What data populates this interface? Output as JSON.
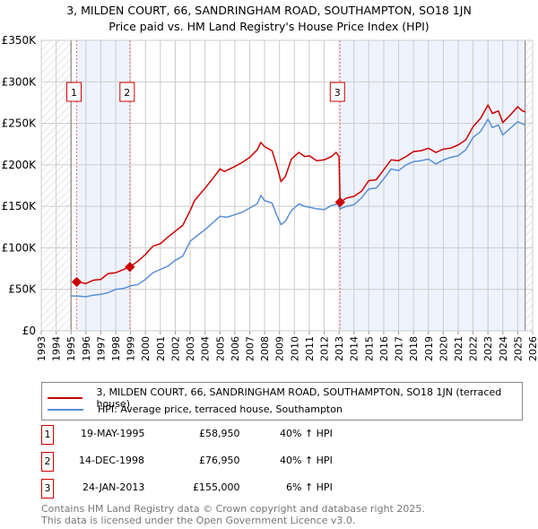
{
  "title": "3, MILDEN COURT, 66, SANDRINGHAM ROAD, SOUTHAMPTON, SO18 1JN",
  "subtitle": "Price paid vs. HM Land Registry's House Price Index (HPI)",
  "chart_data": {
    "type": "line",
    "xlim": [
      1993,
      2026
    ],
    "ylim": [
      0,
      350000
    ],
    "x_ticks": [
      "1993",
      "1994",
      "1995",
      "1996",
      "1997",
      "1998",
      "1999",
      "2000",
      "2001",
      "2002",
      "2003",
      "2004",
      "2005",
      "2006",
      "2007",
      "2008",
      "2009",
      "2010",
      "2011",
      "2012",
      "2013",
      "2014",
      "2015",
      "2016",
      "2017",
      "2018",
      "2019",
      "2020",
      "2021",
      "2022",
      "2023",
      "2024",
      "2025",
      "2026"
    ],
    "y_ticks": [
      {
        "v": 0,
        "label": "£0"
      },
      {
        "v": 50000,
        "label": "£50K"
      },
      {
        "v": 100000,
        "label": "£100K"
      },
      {
        "v": 150000,
        "label": "£150K"
      },
      {
        "v": 200000,
        "label": "£200K"
      },
      {
        "v": 250000,
        "label": "£250K"
      },
      {
        "v": 300000,
        "label": "£300K"
      },
      {
        "v": 350000,
        "label": "£350K"
      }
    ],
    "data_range": [
      1995.0,
      2025.5
    ],
    "series": [
      {
        "name": "3, MILDEN COURT, 66, SANDRINGHAM ROAD, SOUTHAMPTON, SO18 1JN (terraced house)",
        "color": "#cc0000",
        "x": [
          1995.38,
          1996,
          1996.5,
          1997,
          1997.5,
          1998,
          1998.95,
          1999.5,
          2000,
          2000.5,
          2001,
          2001.5,
          2002,
          2002.5,
          2003,
          2003.3,
          2004,
          2004.5,
          2005,
          2005.3,
          2006,
          2006.5,
          2007,
          2007.5,
          2007.75,
          2008,
          2008.5,
          2008.8,
          2009.1,
          2009.4,
          2009.8,
          2010.3,
          2010.7,
          2011,
          2011.5,
          2012,
          2012.5,
          2012.8,
          2013.0,
          2013.07,
          2013.5,
          2014,
          2014.5,
          2015,
          2015.5,
          2016,
          2016.5,
          2017,
          2017.5,
          2018,
          2018.5,
          2019,
          2019.5,
          2020,
          2020.5,
          2021,
          2021.5,
          2022,
          2022.5,
          2023,
          2023.3,
          2023.7,
          2024,
          2024.5,
          2025,
          2025.3,
          2025.5
        ],
        "y": [
          59,
          57,
          61,
          62,
          69,
          70,
          77,
          84,
          92,
          102,
          105,
          113,
          120,
          127,
          145,
          157,
          172,
          183,
          195,
          192,
          198,
          203,
          209,
          218,
          227,
          222,
          217,
          200,
          180,
          186,
          207,
          215,
          210,
          211,
          205,
          206,
          210,
          215,
          210,
          155,
          160,
          162,
          168,
          181,
          182,
          194,
          206,
          205,
          210,
          216,
          217,
          220,
          215,
          219,
          220,
          224,
          230,
          246,
          256,
          272,
          262,
          265,
          251,
          260,
          270,
          265,
          264
        ]
      },
      {
        "name": "HPI: Average price, terraced house, Southampton",
        "color": "#5b8fd4",
        "x": [
          1995.0,
          1995.4,
          1996,
          1996.5,
          1997,
          1997.5,
          1998,
          1998.5,
          1999,
          1999.5,
          2000,
          2000.5,
          2001,
          2001.5,
          2002,
          2002.5,
          2003,
          2003.5,
          2004,
          2004.5,
          2005,
          2005.5,
          2006,
          2006.5,
          2007,
          2007.5,
          2007.75,
          2008,
          2008.5,
          2008.8,
          2009.1,
          2009.4,
          2009.8,
          2010.3,
          2010.7,
          2011,
          2011.5,
          2012,
          2012.5,
          2012.9,
          2013.07,
          2013.5,
          2014,
          2014.5,
          2015,
          2015.5,
          2016,
          2016.5,
          2017,
          2017.5,
          2018,
          2018.5,
          2019,
          2019.5,
          2020,
          2020.5,
          2021,
          2021.5,
          2022,
          2022.5,
          2023,
          2023.3,
          2023.7,
          2024,
          2024.5,
          2025,
          2025.5
        ],
        "y": [
          42,
          42,
          41,
          43,
          44,
          46,
          50,
          51,
          54,
          56,
          62,
          70,
          74,
          78,
          85,
          90,
          108,
          115,
          122,
          130,
          138,
          137,
          140,
          143,
          148,
          153,
          163,
          157,
          154,
          140,
          128,
          132,
          145,
          153,
          150,
          149,
          147,
          146,
          151,
          153,
          147,
          150,
          152,
          160,
          171,
          172,
          183,
          195,
          193,
          200,
          204,
          205,
          207,
          201,
          206,
          209,
          211,
          218,
          233,
          240,
          255,
          245,
          248,
          236,
          244,
          252,
          248
        ]
      }
    ],
    "y_units": "thousands GBP",
    "sales": [
      {
        "id": "1",
        "x": 1995.38,
        "price": 58950,
        "date": "19-MAY-1995",
        "price_label": "£58,950",
        "hpi": "40% ↑ HPI"
      },
      {
        "id": "2",
        "x": 1998.95,
        "price": 76950,
        "date": "14-DEC-1998",
        "price_label": "£76,950",
        "hpi": "40% ↑ HPI"
      },
      {
        "id": "3",
        "x": 2013.07,
        "price": 155000,
        "date": "24-JAN-2013",
        "price_label": "£155,000",
        "hpi": "6% ↑ HPI"
      }
    ]
  },
  "legend": {
    "property": "3, MILDEN COURT, 66, SANDRINGHAM ROAD, SOUTHAMPTON, SO18 1JN (terraced house)",
    "hpi": "HPI: Average price, terraced house, Southampton"
  },
  "footer": {
    "line1": "Contains HM Land Registry data © Crown copyright and database right 2025.",
    "line2": "This data is licensed under the Open Government Licence v3.0."
  }
}
